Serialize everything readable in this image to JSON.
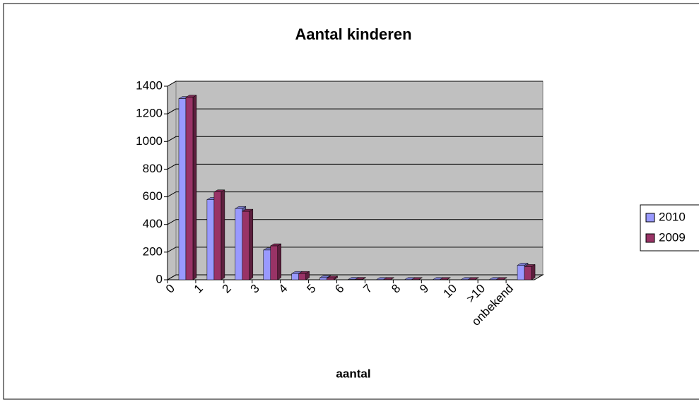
{
  "chart_data": {
    "type": "bar",
    "title": "Aantal kinderen",
    "x_label": "aantal",
    "categories": [
      "0",
      "1",
      "2",
      "3",
      "4",
      "5",
      "6",
      "7",
      "8",
      "9",
      "10",
      ">10",
      "onbekend"
    ],
    "series": [
      {
        "name": "2010",
        "color": "#9999ff",
        "values": [
          1310,
          580,
          515,
          215,
          45,
          15,
          2,
          1,
          1,
          1,
          1,
          1,
          105
        ]
      },
      {
        "name": "2009",
        "color": "#993366",
        "values": [
          1320,
          635,
          495,
          245,
          45,
          12,
          2,
          1,
          1,
          1,
          1,
          1,
          95
        ]
      }
    ],
    "ylim": [
      0,
      1400
    ],
    "yticks": [
      0,
      200,
      400,
      600,
      800,
      1000,
      1200,
      1400
    ],
    "grid": true,
    "legend": "right"
  }
}
